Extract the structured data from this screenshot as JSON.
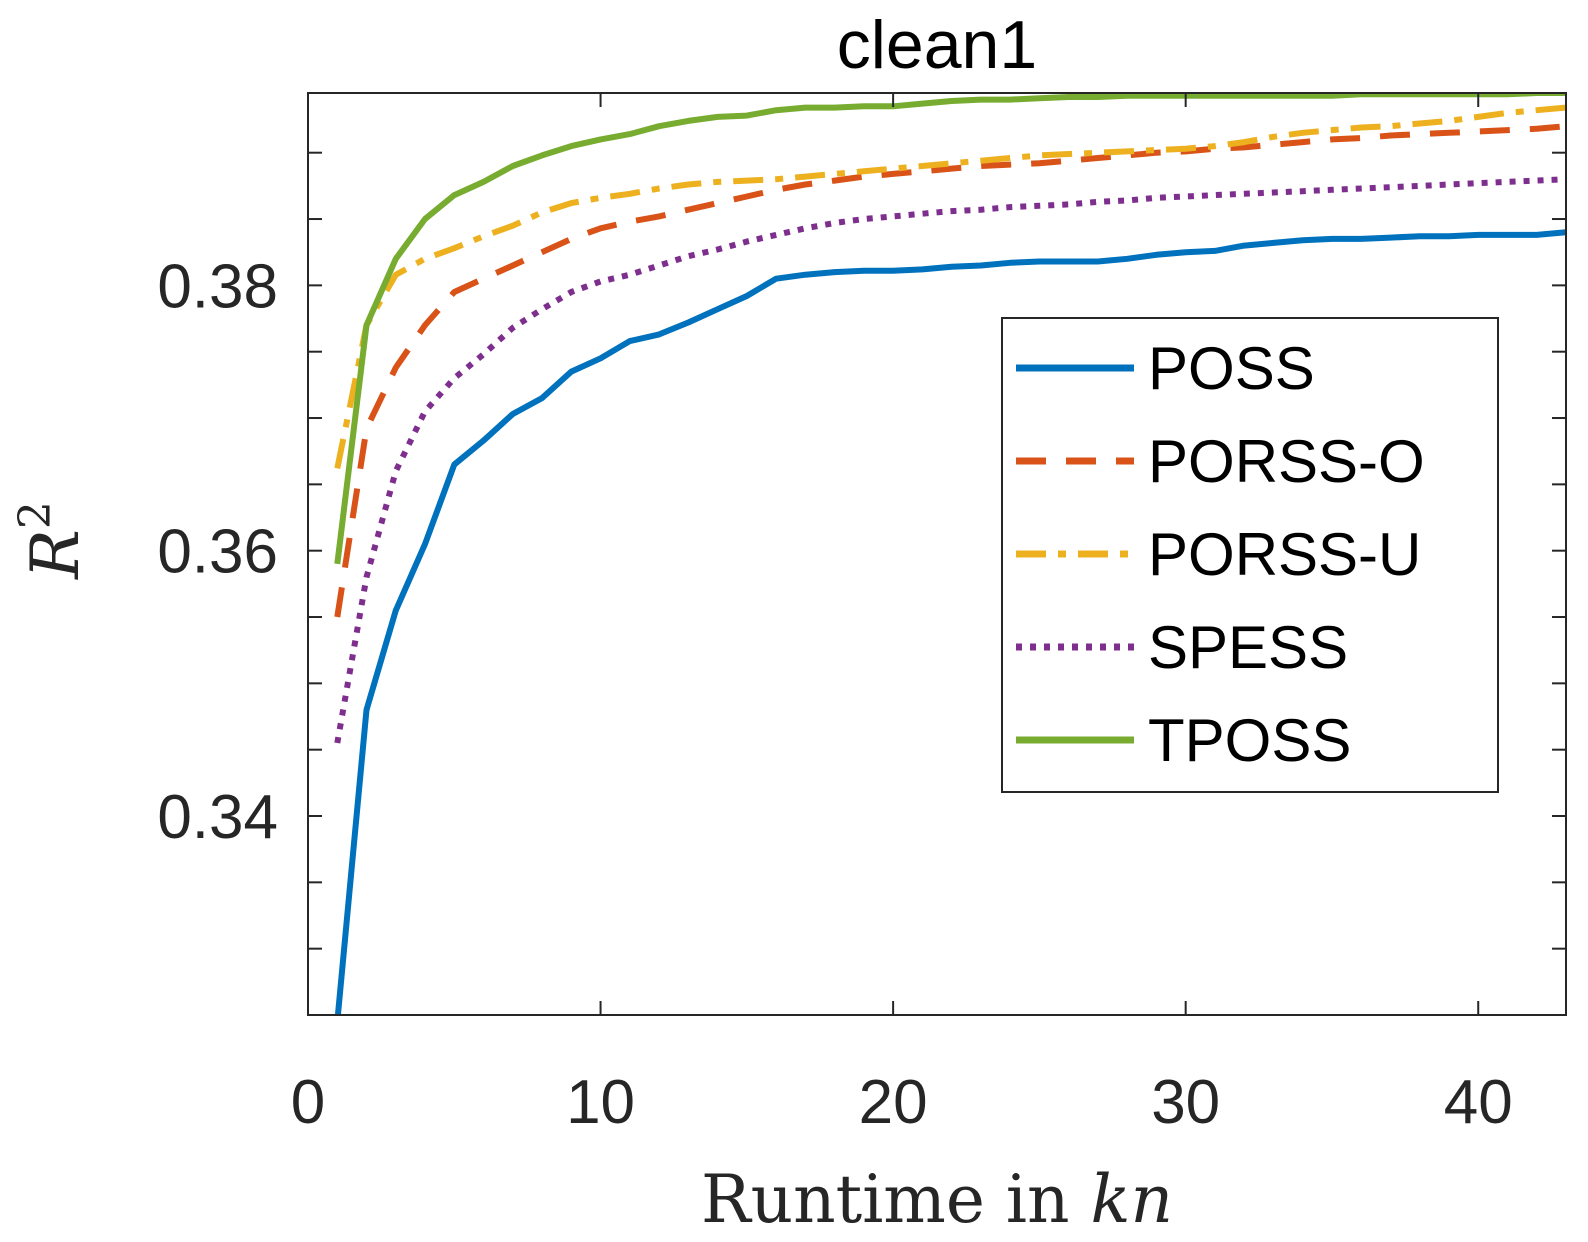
{
  "chart_data": {
    "type": "line",
    "title": "clean1",
    "xlabel_prefix": "Runtime in ",
    "xlabel_var": "kn",
    "ylabel_base": "R",
    "ylabel_sup": "2",
    "xlim": [
      0,
      43
    ],
    "ylim": [
      0.325,
      0.3945
    ],
    "xticks": [
      0,
      10,
      20,
      30,
      40
    ],
    "xtick_labels": [
      "0",
      "10",
      "20",
      "30",
      "40"
    ],
    "yticks": [
      0.34,
      0.36,
      0.38
    ],
    "ytick_labels": [
      "0.34",
      "0.36",
      "0.38"
    ],
    "yminor_step": 0.005,
    "grid": false,
    "legend_position": "right",
    "x": [
      1,
      2,
      3,
      4,
      5,
      6,
      7,
      8,
      9,
      10,
      11,
      12,
      13,
      14,
      15,
      16,
      17,
      18,
      19,
      20,
      21,
      22,
      23,
      24,
      25,
      26,
      27,
      28,
      29,
      30,
      31,
      32,
      33,
      34,
      35,
      36,
      37,
      38,
      39,
      40,
      41,
      42,
      43
    ],
    "series": [
      {
        "name": "POSS",
        "color": "#0072BD",
        "dash": "solid",
        "values": [
          0.3245,
          0.348,
          0.3555,
          0.3605,
          0.3665,
          0.3683,
          0.3703,
          0.3715,
          0.3735,
          0.3745,
          0.3758,
          0.3763,
          0.3772,
          0.3782,
          0.3792,
          0.3805,
          0.3808,
          0.381,
          0.3811,
          0.3811,
          0.3812,
          0.3814,
          0.3815,
          0.3817,
          0.3818,
          0.3818,
          0.3818,
          0.382,
          0.3823,
          0.3825,
          0.3826,
          0.383,
          0.3832,
          0.3834,
          0.3835,
          0.3835,
          0.3836,
          0.3837,
          0.3837,
          0.3838,
          0.3838,
          0.3838,
          0.384
        ]
      },
      {
        "name": "PORSS-O",
        "color": "#D95319",
        "dash": "dashed",
        "values": [
          0.355,
          0.3692,
          0.3738,
          0.377,
          0.3795,
          0.3805,
          0.3815,
          0.3825,
          0.3835,
          0.3843,
          0.3848,
          0.3852,
          0.3857,
          0.3862,
          0.3867,
          0.3872,
          0.3876,
          0.3879,
          0.3882,
          0.3884,
          0.3886,
          0.3888,
          0.389,
          0.3891,
          0.3892,
          0.3894,
          0.3896,
          0.3898,
          0.39,
          0.3901,
          0.3903,
          0.3904,
          0.3906,
          0.3908,
          0.391,
          0.3911,
          0.3913,
          0.3914,
          0.3915,
          0.3916,
          0.3917,
          0.3918,
          0.392
        ]
      },
      {
        "name": "PORSS-U",
        "color": "#EDB120",
        "dash": "dashdot",
        "values": [
          0.3662,
          0.377,
          0.3808,
          0.382,
          0.3828,
          0.3837,
          0.3845,
          0.3855,
          0.3862,
          0.3866,
          0.3869,
          0.3873,
          0.3876,
          0.3878,
          0.3879,
          0.388,
          0.3882,
          0.3884,
          0.3886,
          0.3888,
          0.389,
          0.3892,
          0.3894,
          0.3896,
          0.3898,
          0.3899,
          0.39,
          0.3901,
          0.3902,
          0.3903,
          0.3905,
          0.3908,
          0.3912,
          0.3915,
          0.3917,
          0.3919,
          0.392,
          0.3922,
          0.3924,
          0.3927,
          0.393,
          0.3932,
          0.3934
        ]
      },
      {
        "name": "SPESS",
        "color": "#7E2F8E",
        "dash": "dotted",
        "values": [
          0.3455,
          0.358,
          0.366,
          0.3705,
          0.373,
          0.3748,
          0.3768,
          0.3782,
          0.3795,
          0.3803,
          0.3808,
          0.3815,
          0.3822,
          0.3827,
          0.3833,
          0.3838,
          0.3843,
          0.3847,
          0.385,
          0.3852,
          0.3854,
          0.3856,
          0.3857,
          0.3859,
          0.386,
          0.3861,
          0.3863,
          0.3864,
          0.3866,
          0.3867,
          0.3868,
          0.3869,
          0.387,
          0.3871,
          0.3872,
          0.3873,
          0.3874,
          0.3875,
          0.3876,
          0.3877,
          0.3878,
          0.3879,
          0.388
        ]
      },
      {
        "name": "TPOSS",
        "color": "#77AC30",
        "dash": "solid",
        "values": [
          0.359,
          0.377,
          0.382,
          0.385,
          0.3868,
          0.3878,
          0.389,
          0.3898,
          0.3905,
          0.391,
          0.3914,
          0.392,
          0.3924,
          0.3927,
          0.3928,
          0.3932,
          0.3934,
          0.3934,
          0.3935,
          0.3935,
          0.3937,
          0.3939,
          0.394,
          0.394,
          0.3941,
          0.3942,
          0.3942,
          0.3943,
          0.3943,
          0.3943,
          0.3943,
          0.3943,
          0.3943,
          0.3943,
          0.3943,
          0.3944,
          0.3944,
          0.3944,
          0.3944,
          0.3944,
          0.3944,
          0.3945,
          0.3945
        ]
      }
    ]
  }
}
